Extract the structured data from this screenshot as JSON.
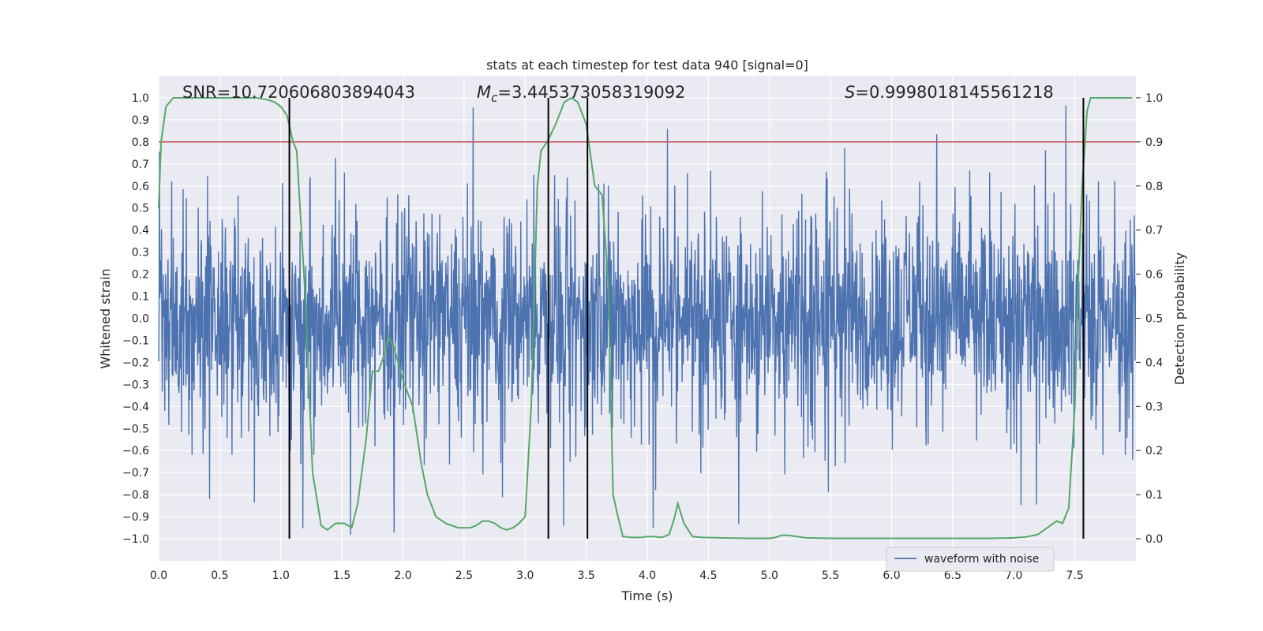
{
  "chart_data": {
    "type": "line",
    "title": "stats at each timestep for test data 940 [signal=0]",
    "xlabel": "Time (s)",
    "ylabel_left": "Whitened strain",
    "ylabel_right": "Detection probability",
    "xlim": [
      0.0,
      8.0
    ],
    "ylim_left": [
      -1.1,
      1.1
    ],
    "ylim_right": [
      -0.05,
      1.05
    ],
    "x_ticks": [
      "0.0",
      "0.5",
      "1.0",
      "1.5",
      "2.0",
      "2.5",
      "3.0",
      "3.5",
      "4.0",
      "4.5",
      "5.0",
      "5.5",
      "6.0",
      "6.5",
      "7.0",
      "7.5"
    ],
    "x_tick_values": [
      0.0,
      0.5,
      1.0,
      1.5,
      2.0,
      2.5,
      3.0,
      3.5,
      4.0,
      4.5,
      5.0,
      5.5,
      6.0,
      6.5,
      7.0,
      7.5
    ],
    "y_ticks_left": [
      "1.0",
      "0.9",
      "0.8",
      "0.7",
      "0.6",
      "0.5",
      "0.4",
      "0.3",
      "0.2",
      "0.1",
      "0.0",
      "−0.1",
      "−0.2",
      "−0.3",
      "−0.4",
      "−0.5",
      "−0.6",
      "−0.7",
      "−0.8",
      "−0.9",
      "−1.0"
    ],
    "y_tick_values_left": [
      1.0,
      0.9,
      0.8,
      0.7,
      0.6,
      0.5,
      0.4,
      0.3,
      0.2,
      0.1,
      0.0,
      -0.1,
      -0.2,
      -0.3,
      -0.4,
      -0.5,
      -0.6,
      -0.7,
      -0.8,
      -0.9,
      -1.0
    ],
    "y_ticks_right": [
      "1.0",
      "0.9",
      "0.8",
      "0.7",
      "0.6",
      "0.5",
      "0.4",
      "0.3",
      "0.2",
      "0.1",
      "0.0"
    ],
    "y_tick_values_right": [
      1.0,
      0.9,
      0.8,
      0.7,
      0.6,
      0.5,
      0.4,
      0.3,
      0.2,
      0.1,
      0.0
    ],
    "annotations": {
      "snr": "SNR=10.720606803894043",
      "mc_symbol": "M",
      "mc_sub": "c",
      "mc_value": "=3.445373058319092",
      "s_symbol": "S",
      "s_value": "=0.9998018145561218"
    },
    "threshold": {
      "value": 0.9,
      "axis": "right",
      "color": "#c44e52"
    },
    "vertical_lines": [
      1.07,
      3.19,
      3.51,
      7.57
    ],
    "legend": {
      "entries": [
        "waveform with noise"
      ],
      "location": "lower-right"
    },
    "series": [
      {
        "name": "waveform with noise",
        "axis": "left",
        "color": "#4c72b0",
        "style": "dense noise",
        "duration": 8.0,
        "typical_range": [
          -0.5,
          0.5
        ],
        "peak_max": 1.0,
        "peak_min": -1.0
      },
      {
        "name": "detection probability",
        "axis": "right",
        "color": "#55a868",
        "x": [
          0.0,
          0.02,
          0.06,
          0.12,
          0.2,
          0.4,
          0.6,
          0.8,
          0.9,
          0.95,
          1.0,
          1.05,
          1.1,
          1.13,
          1.2,
          1.26,
          1.33,
          1.38,
          1.45,
          1.52,
          1.58,
          1.63,
          1.7,
          1.75,
          1.8,
          1.85,
          1.88,
          1.93,
          2.0,
          2.08,
          2.15,
          2.2,
          2.27,
          2.35,
          2.45,
          2.55,
          2.6,
          2.65,
          2.7,
          2.75,
          2.8,
          2.85,
          2.9,
          2.95,
          3.0,
          3.05,
          3.1,
          3.13,
          3.18,
          3.25,
          3.32,
          3.38,
          3.43,
          3.5,
          3.57,
          3.63,
          3.68,
          3.72,
          3.76,
          3.8,
          3.87,
          3.95,
          4.0,
          4.05,
          4.12,
          4.18,
          4.22,
          4.25,
          4.3,
          4.37,
          4.45,
          4.6,
          4.8,
          5.0,
          5.05,
          5.1,
          5.15,
          5.3,
          5.5,
          5.8,
          6.0,
          6.3,
          6.5,
          6.8,
          7.0,
          7.1,
          7.2,
          7.25,
          7.3,
          7.35,
          7.4,
          7.45,
          7.5,
          7.53,
          7.56,
          7.6,
          7.63,
          7.68,
          7.72,
          7.8,
          7.9,
          7.97
        ],
        "y": [
          0.75,
          0.9,
          0.98,
          1.0,
          1.0,
          1.0,
          1.0,
          1.0,
          0.995,
          0.99,
          0.98,
          0.96,
          0.9,
          0.88,
          0.55,
          0.15,
          0.03,
          0.02,
          0.035,
          0.035,
          0.025,
          0.08,
          0.23,
          0.38,
          0.38,
          0.42,
          0.46,
          0.43,
          0.36,
          0.3,
          0.17,
          0.1,
          0.05,
          0.035,
          0.025,
          0.025,
          0.03,
          0.04,
          0.04,
          0.035,
          0.025,
          0.02,
          0.025,
          0.035,
          0.05,
          0.3,
          0.8,
          0.88,
          0.9,
          0.94,
          0.99,
          1.0,
          0.99,
          0.94,
          0.8,
          0.78,
          0.58,
          0.1,
          0.05,
          0.005,
          0.003,
          0.003,
          0.005,
          0.005,
          0.003,
          0.01,
          0.045,
          0.08,
          0.035,
          0.005,
          0.003,
          0.002,
          0.001,
          0.001,
          0.003,
          0.008,
          0.008,
          0.002,
          0.001,
          0.001,
          0.001,
          0.001,
          0.001,
          0.001,
          0.002,
          0.004,
          0.01,
          0.02,
          0.03,
          0.04,
          0.035,
          0.07,
          0.3,
          0.6,
          0.8,
          0.97,
          1.0,
          1.0,
          1.0,
          1.0,
          1.0,
          1.0
        ]
      }
    ]
  }
}
